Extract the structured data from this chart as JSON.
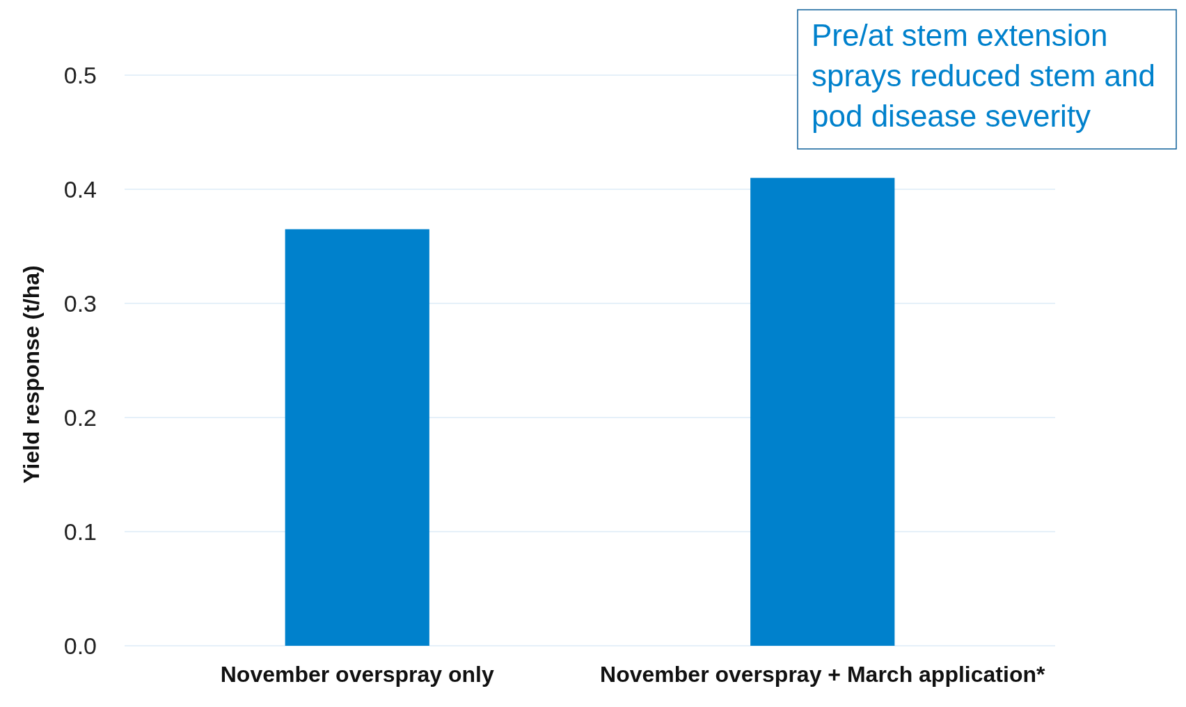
{
  "chart_data": {
    "type": "bar",
    "ylabel": "Yield response (t/ha)",
    "categories": [
      "November overspray only",
      "November overspray + March application*"
    ],
    "values": [
      0.365,
      0.41
    ],
    "color": "#0081cc",
    "ylim": [
      0,
      0.5
    ],
    "yticks": [
      {
        "value": 0,
        "label": "0.0"
      },
      {
        "value": 0.1,
        "label": "0.1"
      },
      {
        "value": 0.2,
        "label": "0.2"
      },
      {
        "value": 0.3,
        "label": "0.3"
      },
      {
        "value": 0.4,
        "label": "0.4"
      },
      {
        "value": 0.5,
        "label": "0.5"
      }
    ],
    "grid": "y",
    "annotations": [
      "Pre/at stem extension sprays reduced stem and pod disease severity"
    ]
  }
}
